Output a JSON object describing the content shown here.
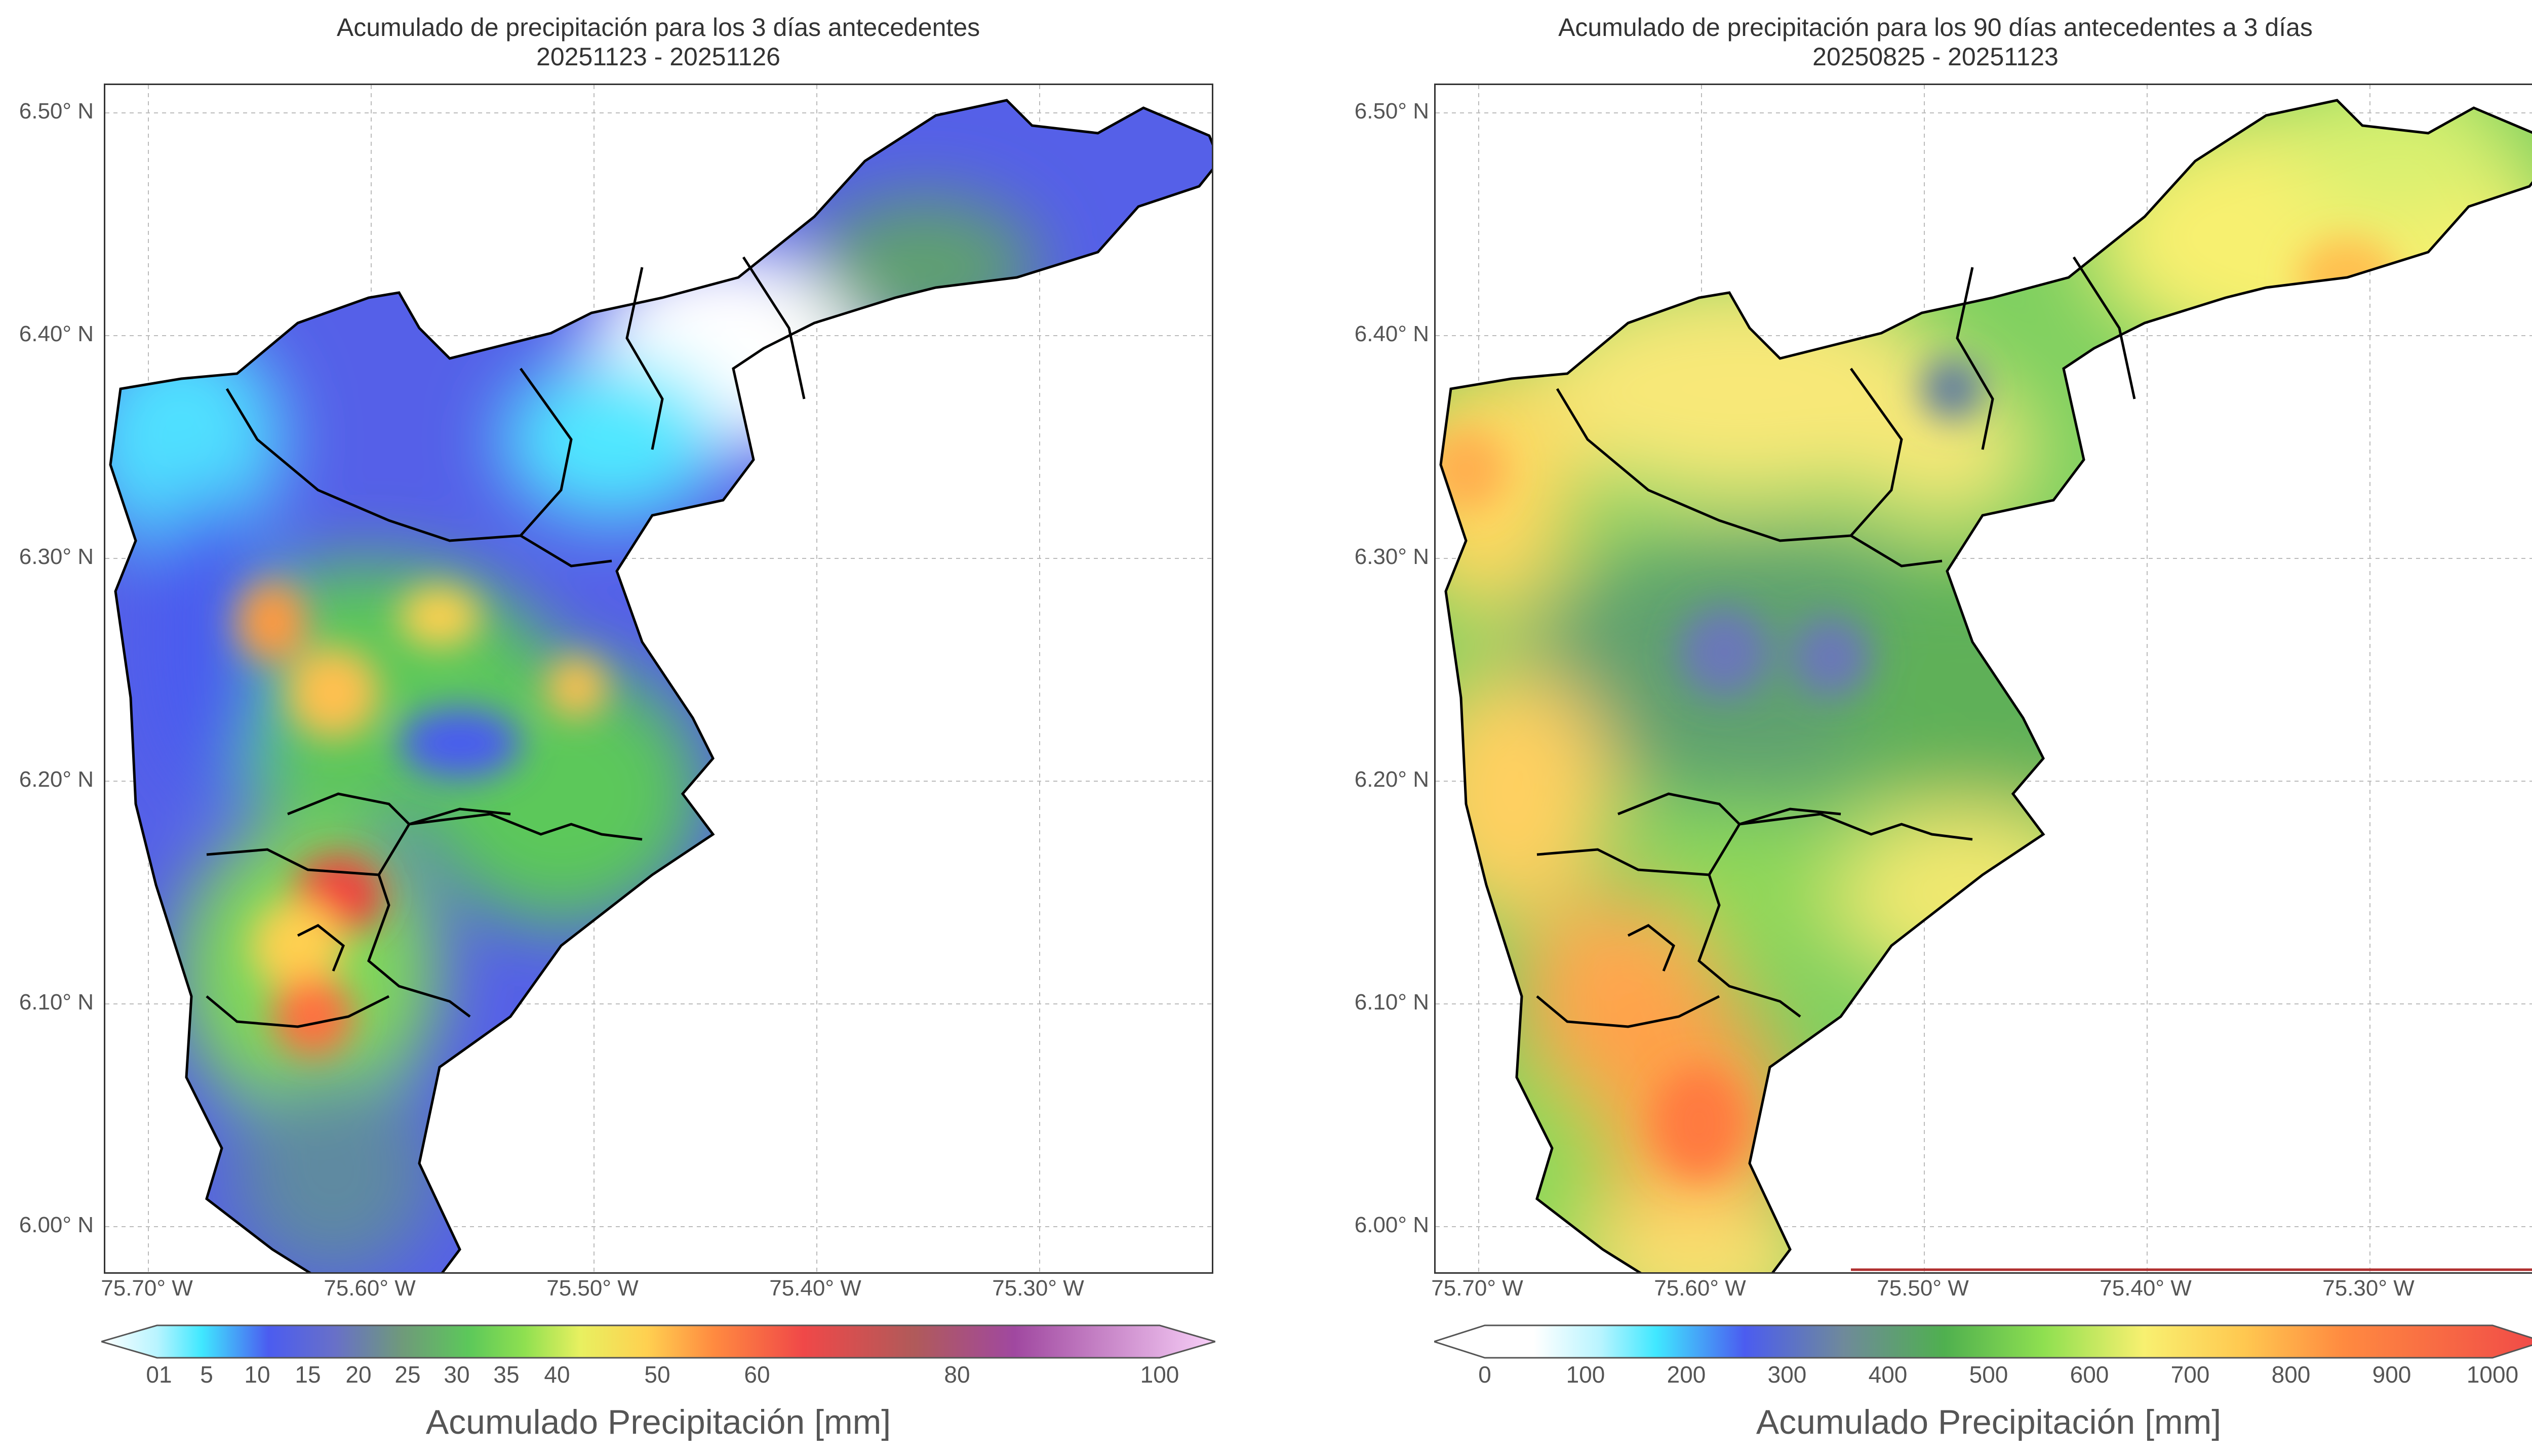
{
  "maps": [
    {
      "title_line1": "Acumulado de precipitación para los 3 días antecedentes",
      "title_line2": "20251123 - 20251126",
      "y_ticks": [
        "6.50° N",
        "6.40° N",
        "6.30° N",
        "6.20° N",
        "6.10° N",
        "6.00° N"
      ],
      "x_ticks": [
        "75.70° W",
        "75.60° W",
        "75.50° W",
        "75.40° W",
        "75.30° W"
      ],
      "colorbar": {
        "ticks": [
          "01",
          "5",
          "10",
          "15",
          "20",
          "25",
          "30",
          "35",
          "40",
          "50",
          "60",
          "80",
          "100"
        ],
        "label": "Acumulado Precipitación [mm]",
        "colors": [
          "#ffffff",
          "#b8f4ff",
          "#40e8ff",
          "#4b5cf0",
          "#6870c8",
          "#6f9a7a",
          "#5cc85a",
          "#8fe050",
          "#e8f060",
          "#ffd050",
          "#ff8a40",
          "#f04848",
          "#b05a5a",
          "#a048a0",
          "#f8d0f8"
        ]
      }
    },
    {
      "title_line1": "Acumulado de precipitación para los 90 días antecedentes a 3 días",
      "title_line2": "20250825 - 20251123",
      "y_ticks": [
        "6.50° N",
        "6.40° N",
        "6.30° N",
        "6.20° N",
        "6.10° N",
        "6.00° N"
      ],
      "x_ticks": [
        "75.70° W",
        "75.60° W",
        "75.50° W",
        "75.40° W",
        "75.30° W"
      ],
      "colorbar": {
        "ticks": [
          "0",
          "100",
          "200",
          "300",
          "400",
          "500",
          "600",
          "700",
          "800",
          "900",
          "1000"
        ],
        "label": "Acumulado Precipitación [mm]",
        "colors": [
          "#ffffff",
          "#b8f4ff",
          "#40e8ff",
          "#4b5cf0",
          "#6f8a9a",
          "#4fb04f",
          "#8fe050",
          "#f8f070",
          "#ffc850",
          "#ff8a40",
          "#f04848"
        ]
      }
    }
  ]
}
